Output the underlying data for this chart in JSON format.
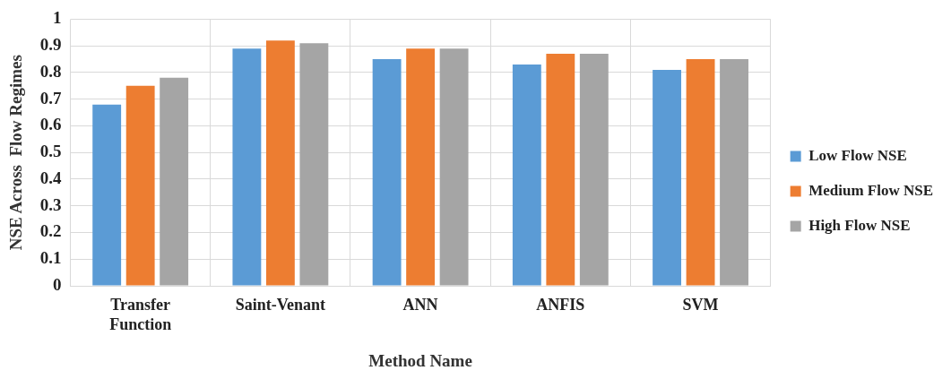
{
  "chart_data": {
    "type": "bar",
    "xlabel": "Method Name",
    "ylabel": "NSE Across  Flow Regimes",
    "categories": [
      "Transfer Function",
      "Saint-Venant",
      "ANN",
      "ANFIS",
      "SVM"
    ],
    "series": [
      {
        "name": "Low Flow NSE",
        "color": "#5b9bd5",
        "values": [
          0.68,
          0.89,
          0.85,
          0.83,
          0.81
        ]
      },
      {
        "name": "Medium Flow NSE",
        "color": "#ed7d31",
        "values": [
          0.75,
          0.92,
          0.89,
          0.87,
          0.85
        ]
      },
      {
        "name": "High Flow NSE",
        "color": "#a5a5a5",
        "values": [
          0.78,
          0.91,
          0.89,
          0.87,
          0.85
        ]
      }
    ],
    "ylim": [
      0,
      1
    ],
    "yticks": [
      0,
      0.1,
      0.2,
      0.3,
      0.4,
      0.5,
      0.6,
      0.7,
      0.8,
      0.9,
      1
    ],
    "grid": true,
    "legend": "right"
  }
}
